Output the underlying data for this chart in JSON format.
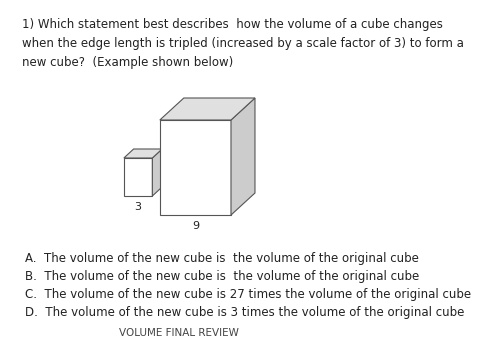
{
  "title": "VOLUME FINAL REVIEW",
  "question": "1) Which statement best describes  how the volume of a cube changes\nwhen the edge length is tripled (increased by a scale factor of 3) to form a\nnew cube?  (Example shown below)",
  "choices": [
    "A.  The volume of the new cube is  the volume of the original cube",
    "B.  The volume of the new cube is  the volume of the original cube",
    "C.  The volume of the new cube is 27 times the volume of the original cube",
    "D.  The volume of the new cube is 3 times the volume of the original cube"
  ],
  "small_cube_label": "3",
  "large_cube_label": "9",
  "bg_color": "#ffffff",
  "line_color": "#555555",
  "face_color_front": "#ffffff",
  "face_color_side": "#cccccc",
  "face_color_top": "#e0e0e0",
  "question_fontsize": 8.5,
  "choice_fontsize": 8.5,
  "title_fontsize": 7.5,
  "label_fontsize": 8
}
